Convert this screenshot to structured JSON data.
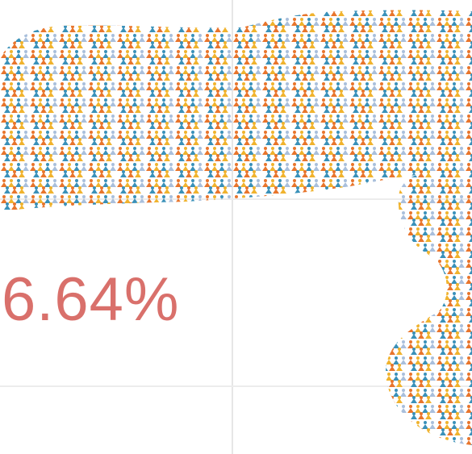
{
  "stat": {
    "value_text": "6.64%",
    "color": "#d9706b"
  },
  "pattern": {
    "icon": "person-pictogram-icon",
    "colors": [
      "#e8752c",
      "#f0b32e",
      "#3a91b9",
      "#a9bfdc"
    ]
  }
}
